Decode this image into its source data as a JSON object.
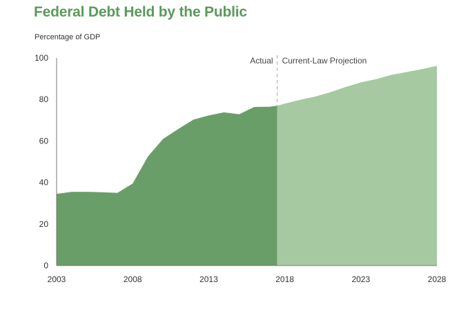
{
  "colors": {
    "title": "#5a9a5a",
    "actual": "#6a9e68",
    "projection": "#a6c9a2",
    "divider": "#aaaaaa"
  },
  "chart_data": {
    "type": "area",
    "title": "Federal Debt Held by the Public",
    "ylabel": "Percentage of GDP",
    "xlabel": "",
    "ylim": [
      0,
      100
    ],
    "xlim": [
      2003,
      2028
    ],
    "yticks": [
      0,
      20,
      40,
      60,
      80,
      100
    ],
    "xticks": [
      2003,
      2008,
      2013,
      2018,
      2023,
      2028
    ],
    "grid": false,
    "annotations": {
      "actual": "Actual",
      "projection": "Current-Law Projection"
    },
    "divider_x": 2017.5,
    "series": [
      {
        "name": "Actual",
        "x": [
          2003,
          2004,
          2005,
          2006,
          2007,
          2008,
          2009,
          2010,
          2011,
          2012,
          2013,
          2014,
          2015,
          2016,
          2017,
          2017.5
        ],
        "y": [
          34.5,
          35.5,
          35.5,
          35.3,
          35.0,
          39.5,
          52.5,
          61.0,
          65.8,
          70.3,
          72.3,
          73.8,
          72.9,
          76.4,
          76.5,
          77.0
        ]
      },
      {
        "name": "Current-Law Projection",
        "x": [
          2017.5,
          2018,
          2019,
          2020,
          2021,
          2022,
          2023,
          2024,
          2025,
          2026,
          2027,
          2028
        ],
        "y": [
          77.0,
          78.0,
          79.8,
          81.4,
          83.5,
          86.0,
          88.2,
          89.8,
          91.8,
          93.2,
          94.6,
          96.2
        ]
      }
    ]
  }
}
